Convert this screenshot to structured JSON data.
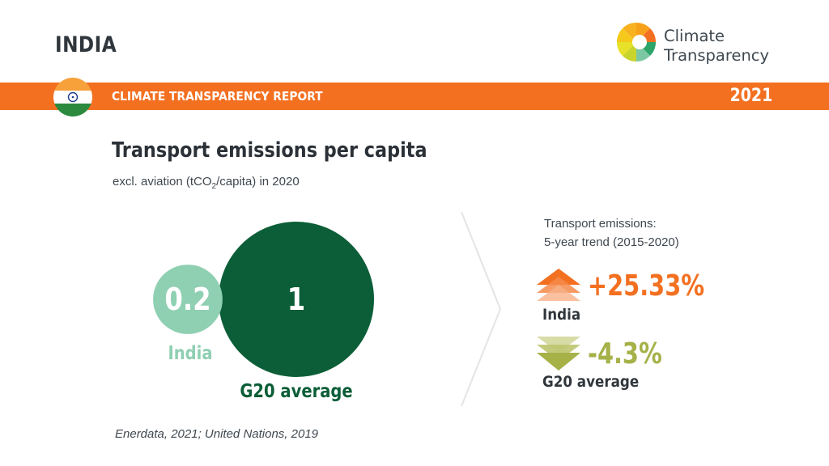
{
  "header": {
    "country": "INDIA",
    "logo_line1": "Climate",
    "logo_line2": "Transparency",
    "report_label": "CLIMATE TRANSPARENCY REPORT",
    "year": "2021"
  },
  "chart_data": {
    "type": "bubble",
    "title": "Transport emissions per capita",
    "subtitle_pre": "excl. aviation (tCO",
    "subtitle_sub": "2",
    "subtitle_post": "/capita) in 2020",
    "categories": [
      "India",
      "G20 average"
    ],
    "values": [
      0.2,
      1
    ],
    "value_labels": [
      "0.2",
      "1"
    ],
    "colors": [
      "#8fcfb2",
      "#0b5e37"
    ]
  },
  "trend": {
    "heading_line1": "Transport emissions:",
    "heading_line2": "5-year trend (2015-2020)",
    "india": {
      "value": "+25.33%",
      "name": "India",
      "direction": "up",
      "color": "#f37021"
    },
    "g20": {
      "value": "-4.3%",
      "name": "G20 average",
      "direction": "down",
      "color": "#a6b148"
    }
  },
  "source": "Enerdata, 2021; United Nations, 2019",
  "colors": {
    "accent": "#f37021",
    "dark_text": "#2f363c"
  }
}
